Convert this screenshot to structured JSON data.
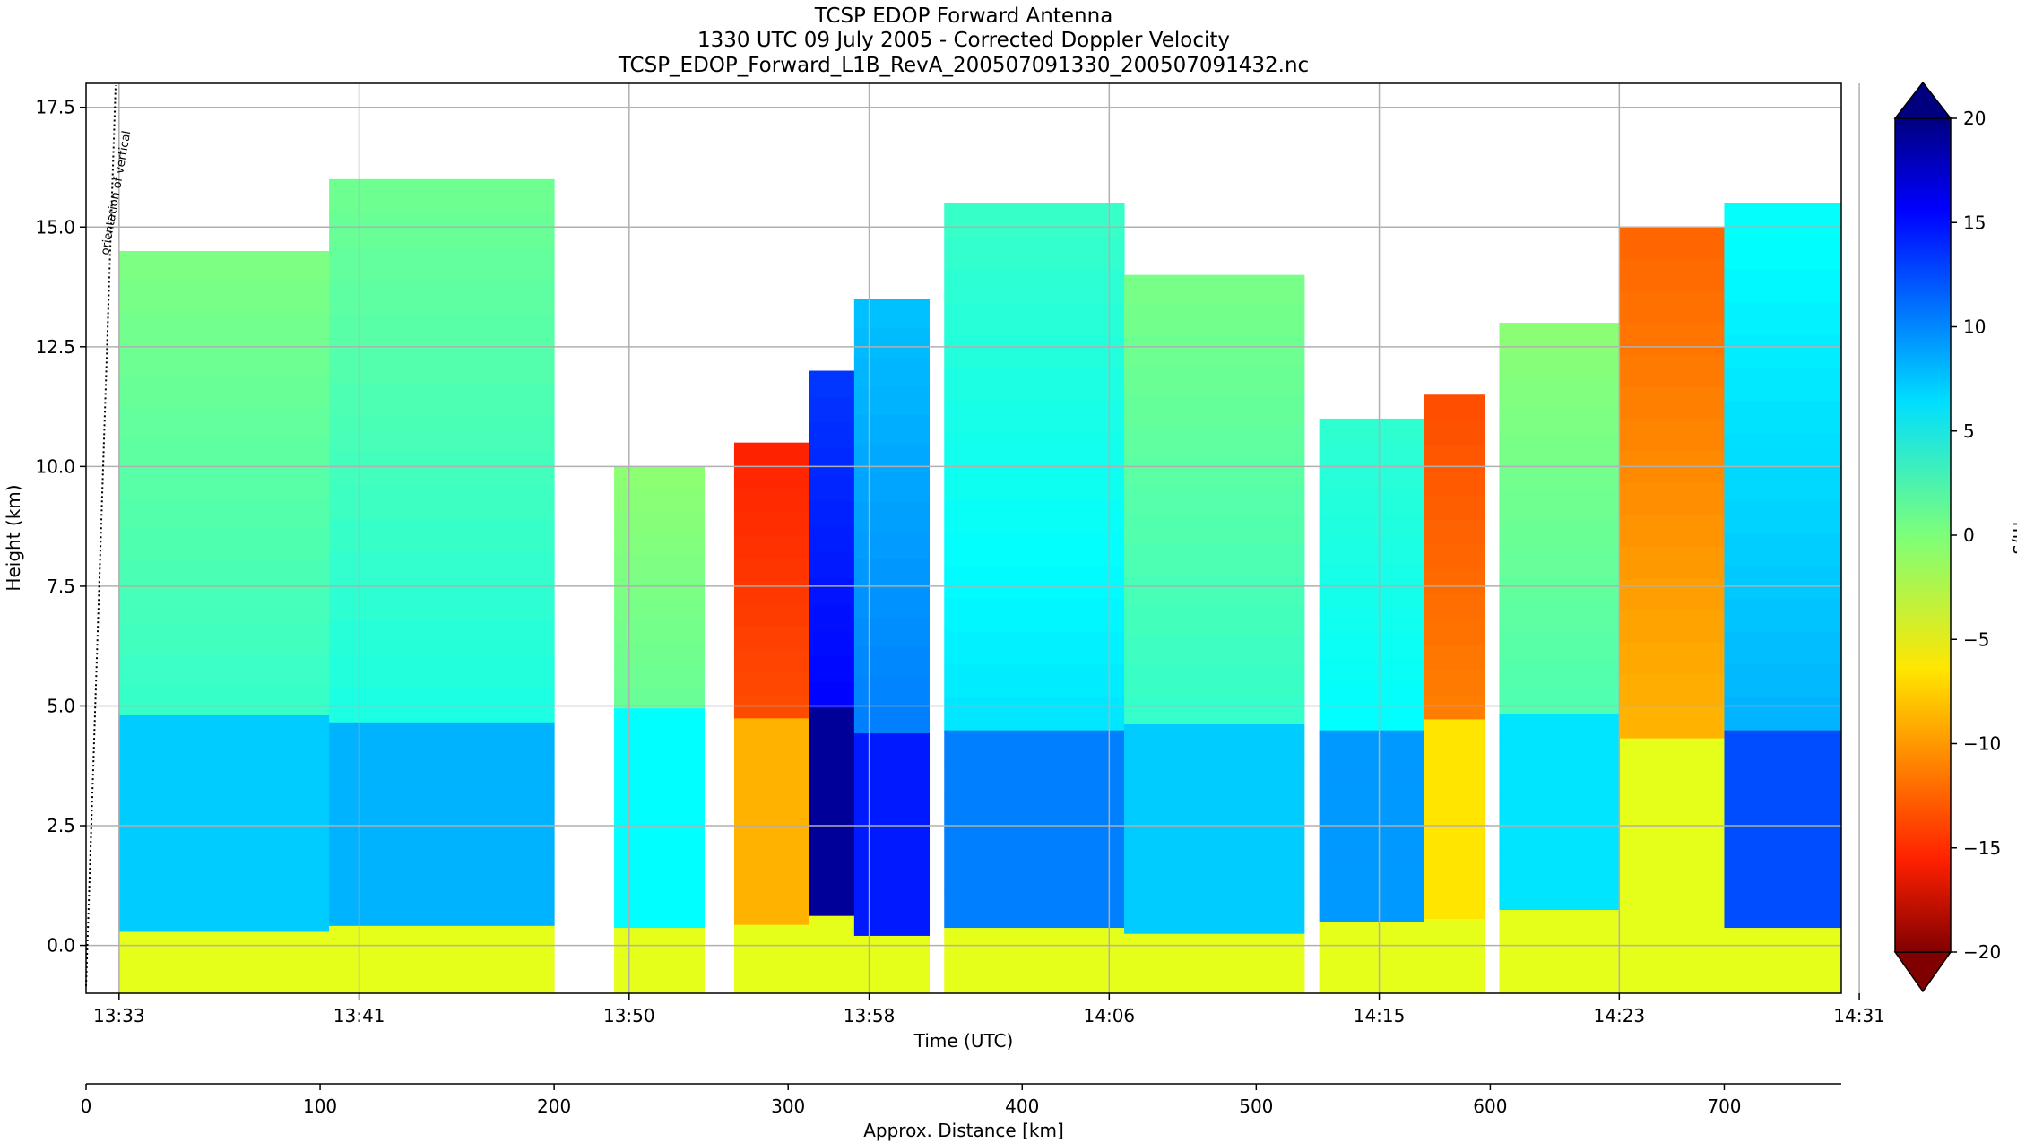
{
  "title_lines": [
    "TCSP EDOP Forward Antenna",
    "1330 UTC 09 July 2005 - Corrected Doppler Velocity",
    "TCSP_EDOP_Forward_L1B_RevA_200507091330_200507091432.nc"
  ],
  "annotation": "orientation of vertical",
  "chart_data": {
    "type": "heatmap",
    "xlabel": "Time (UTC)",
    "ylabel": "Height (km)",
    "x_ticks": [
      "13:33",
      "13:41",
      "13:50",
      "13:58",
      "14:06",
      "14:15",
      "14:23",
      "14:31"
    ],
    "x_range_min": [
      31.9,
      90.4
    ],
    "x_tick_min": [
      33,
      41,
      50,
      58,
      66,
      75,
      83,
      91
    ],
    "ylim": [
      -1,
      18
    ],
    "y_ticks": [
      0.0,
      2.5,
      5.0,
      7.5,
      10.0,
      12.5,
      15.0,
      17.5
    ],
    "y_tick_labels": [
      "0.0",
      "2.5",
      "5.0",
      "7.5",
      "10.0",
      "12.5",
      "15.0",
      "17.5"
    ],
    "grid": true,
    "secondary_xlabel": "Approx. Distance [km]",
    "secondary_x_ticks": [
      0,
      100,
      200,
      300,
      400,
      500,
      600,
      700
    ],
    "secondary_xlim": [
      0,
      750
    ],
    "colorbar": {
      "label": "m/s",
      "range": [
        -20,
        20
      ],
      "ticks": [
        20,
        15,
        10,
        5,
        0,
        -5,
        -10,
        -15,
        -20
      ],
      "tick_labels": [
        "20",
        "15",
        "10",
        "5",
        "0",
        "−5",
        "−10",
        "−15",
        "−20"
      ],
      "colormap": "jet_reversed",
      "extend": "both"
    },
    "echo_columns": [
      {
        "t_start": 33.0,
        "t_end": 40.0,
        "top_km": 14.5,
        "mean_velocity": 3
      },
      {
        "t_start": 40.0,
        "t_end": 47.5,
        "top_km": 16.0,
        "mean_velocity": 4
      },
      {
        "t_start": 49.5,
        "t_end": 52.5,
        "top_km": 10.0,
        "mean_velocity": 1
      },
      {
        "t_start": 53.5,
        "t_end": 56.0,
        "top_km": 10.5,
        "mean_velocity": -12
      },
      {
        "t_start": 56.0,
        "t_end": 57.5,
        "top_km": 12.0,
        "mean_velocity": 15
      },
      {
        "t_start": 57.5,
        "t_end": 60.0,
        "top_km": 13.5,
        "mean_velocity": 10
      },
      {
        "t_start": 60.5,
        "t_end": 66.5,
        "top_km": 15.5,
        "mean_velocity": 6
      },
      {
        "t_start": 66.5,
        "t_end": 72.5,
        "top_km": 14.0,
        "mean_velocity": 3
      },
      {
        "t_start": 73.0,
        "t_end": 76.5,
        "top_km": 11.0,
        "mean_velocity": 5
      },
      {
        "t_start": 76.5,
        "t_end": 78.5,
        "top_km": 11.5,
        "mean_velocity": -10
      },
      {
        "t_start": 79.0,
        "t_end": 83.0,
        "top_km": 13.0,
        "mean_velocity": 2
      },
      {
        "t_start": 83.0,
        "t_end": 86.5,
        "top_km": 15.0,
        "mean_velocity": -8
      },
      {
        "t_start": 86.5,
        "t_end": 90.4,
        "top_km": 15.5,
        "mean_velocity": 8
      }
    ]
  },
  "colors": {
    "grid": "#b0b0b0",
    "strong_negative": "#800000",
    "strong_positive": "#00007f"
  }
}
